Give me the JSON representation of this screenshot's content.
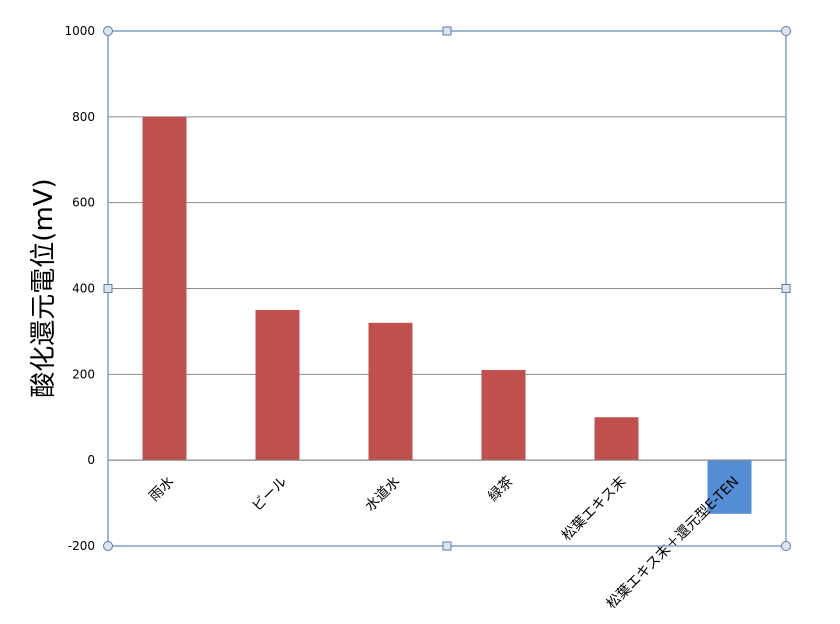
{
  "chart_data": {
    "type": "bar",
    "title": "",
    "xlabel": "",
    "ylabel": "酸化還元電位(mV)",
    "ylim": [
      -200,
      1000
    ],
    "yticks": [
      -200,
      0,
      200,
      400,
      600,
      800,
      1000
    ],
    "grid": true,
    "legend": "none",
    "categories": [
      "雨水",
      "ビール",
      "水道水",
      "緑茶",
      "松葉エキス末",
      "松葉エキス末＋還元型E-TEN"
    ],
    "values": [
      800,
      350,
      320,
      210,
      100,
      -125
    ],
    "colors": {
      "positive_bar": "#c0504d",
      "negative_bar": "#558ed5",
      "gridline": "#8c8c8c",
      "plot_frame": "#7f9fc6",
      "handle_fill": "#dce6f1",
      "handle_stroke": "#5b7ba8"
    }
  }
}
